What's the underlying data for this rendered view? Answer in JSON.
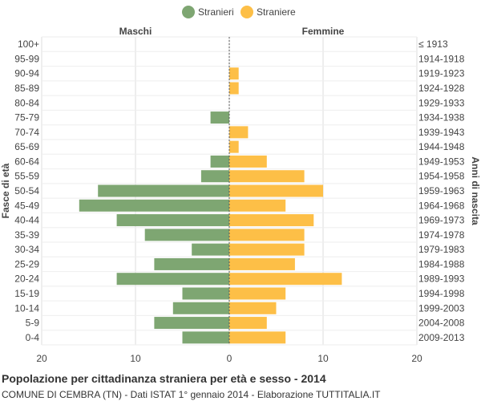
{
  "chart_data": {
    "type": "bar",
    "title": "Popolazione per cittadinanza straniera per età e sesso - 2014",
    "subtitle": "COMUNE DI CEMBRA (TN) - Dati ISTAT 1° gennaio 2014 - Elaborazione TUTTITALIA.IT",
    "left_header": "Maschi",
    "right_header": "Femmine",
    "ylabel_left": "Fasce di età",
    "ylabel_right": "Anni di nascita",
    "legend_position": "top-center",
    "xlim": [
      -20,
      20
    ],
    "x_ticks": [
      -20,
      -10,
      0,
      10,
      20
    ],
    "x_tick_labels": [
      "20",
      "10",
      "0",
      "10",
      "20"
    ],
    "grid": true,
    "categories": [
      "100+",
      "95-99",
      "90-94",
      "85-89",
      "80-84",
      "75-79",
      "70-74",
      "65-69",
      "60-64",
      "55-59",
      "50-54",
      "45-49",
      "40-44",
      "35-39",
      "30-34",
      "25-29",
      "20-24",
      "15-19",
      "10-14",
      "5-9",
      "0-4"
    ],
    "birth_years": [
      "≤ 1913",
      "1914-1918",
      "1919-1923",
      "1924-1928",
      "1929-1933",
      "1934-1938",
      "1939-1943",
      "1944-1948",
      "1949-1953",
      "1954-1958",
      "1959-1963",
      "1964-1968",
      "1969-1973",
      "1974-1978",
      "1979-1983",
      "1984-1988",
      "1989-1993",
      "1994-1998",
      "1999-2003",
      "2004-2008",
      "2009-2013"
    ],
    "series": [
      {
        "name": "Stranieri",
        "color": "#7ea672",
        "values": [
          0,
          0,
          0,
          0,
          0,
          2,
          0,
          0,
          2,
          3,
          14,
          16,
          12,
          9,
          4,
          8,
          12,
          5,
          6,
          8,
          5
        ]
      },
      {
        "name": "Straniere",
        "color": "#fdbf47",
        "values": [
          0,
          0,
          1,
          1,
          0,
          0,
          2,
          1,
          4,
          8,
          10,
          6,
          9,
          8,
          8,
          7,
          12,
          6,
          5,
          4,
          6
        ]
      }
    ]
  }
}
